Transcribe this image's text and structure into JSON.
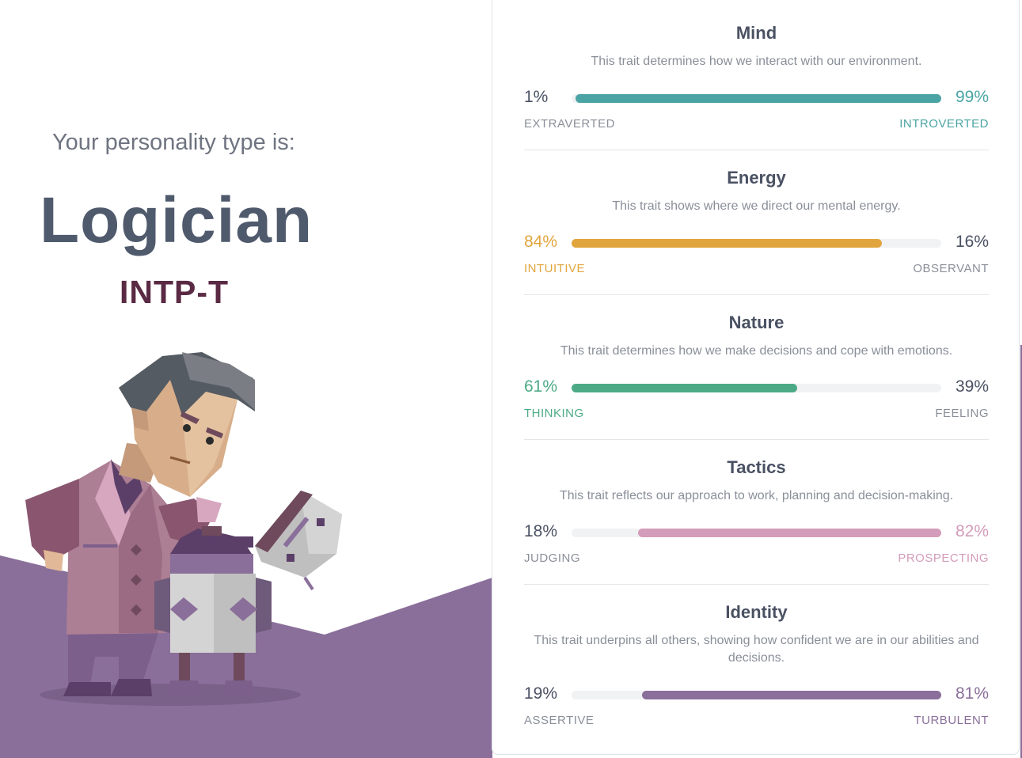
{
  "intro_text": "Your personality type is:",
  "type_name": "Logician",
  "type_code": "INTP-T",
  "colors": {
    "mind": "#4ba4a4",
    "energy": "#e1a53d",
    "nature": "#4caa86",
    "tactics": "#d39cba",
    "identity": "#8a6f9a",
    "title_text": "#4f5a6d",
    "code_text": "#5a2a44",
    "purple_bg": "#8a6f9a"
  },
  "traits": [
    {
      "title": "Mind",
      "description": "This trait determines how we interact with our environment.",
      "left_percent": "1%",
      "right_percent": "99%",
      "left_label": "EXTRAVERTED",
      "right_label": "INTROVERTED",
      "dominant": "right",
      "fill_fraction": 0.99,
      "color": "#4ba4a4"
    },
    {
      "title": "Energy",
      "description": "This trait shows where we direct our mental energy.",
      "left_percent": "84%",
      "right_percent": "16%",
      "left_label": "INTUITIVE",
      "right_label": "OBSERVANT",
      "dominant": "left",
      "fill_fraction": 0.84,
      "color": "#e1a53d"
    },
    {
      "title": "Nature",
      "description": "This trait determines how we make decisions and cope with emotions.",
      "left_percent": "61%",
      "right_percent": "39%",
      "left_label": "THINKING",
      "right_label": "FEELING",
      "dominant": "left",
      "fill_fraction": 0.61,
      "color": "#4caa86"
    },
    {
      "title": "Tactics",
      "description": "This trait reflects our approach to work, planning and decision-making.",
      "left_percent": "18%",
      "right_percent": "82%",
      "left_label": "JUDGING",
      "right_label": "PROSPECTING",
      "dominant": "right",
      "fill_fraction": 0.82,
      "color": "#d39cba"
    },
    {
      "title": "Identity",
      "description": "This trait underpins all others, showing how confident we are in our abilities and decisions.",
      "left_percent": "19%",
      "right_percent": "81%",
      "left_label": "ASSERTIVE",
      "right_label": "TURBULENT",
      "dominant": "right",
      "fill_fraction": 0.81,
      "color": "#8a6f9a"
    }
  ]
}
